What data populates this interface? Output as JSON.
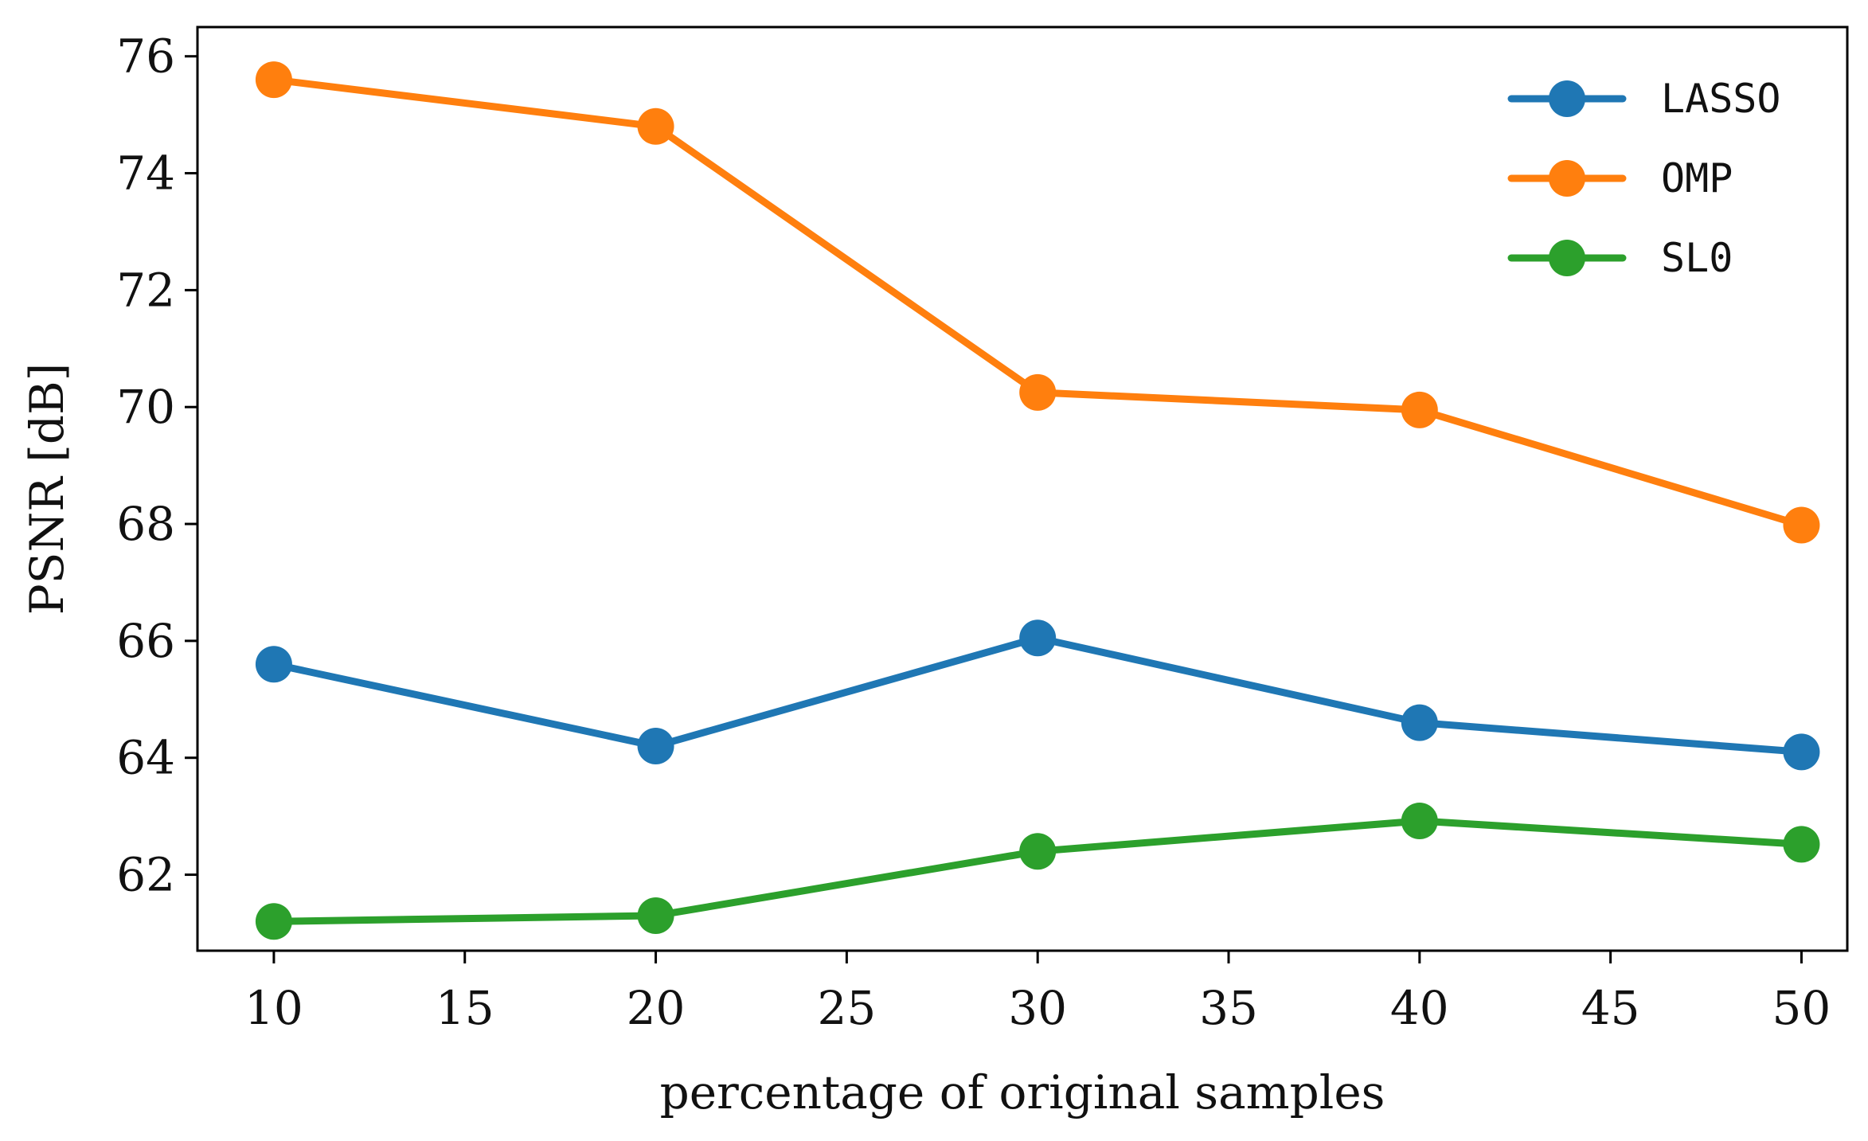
{
  "chart_data": {
    "type": "line",
    "xlabel": "percentage of original samples",
    "ylabel": "PSNR [dB]",
    "x": [
      10,
      20,
      30,
      40,
      50
    ],
    "xlim": [
      8,
      51.2
    ],
    "ylim": [
      60.7,
      76.5
    ],
    "xticks": [
      10,
      15,
      20,
      25,
      30,
      35,
      40,
      45,
      50
    ],
    "yticks": [
      62,
      64,
      66,
      68,
      70,
      72,
      74,
      76
    ],
    "grid": false,
    "legend_position": "top-right",
    "series": [
      {
        "name": "LASSO",
        "color": "#1f77b4",
        "values": [
          65.6,
          64.2,
          66.05,
          64.6,
          64.1
        ]
      },
      {
        "name": "OMP",
        "color": "#ff7f0e",
        "values": [
          75.6,
          74.8,
          70.25,
          69.95,
          67.98
        ]
      },
      {
        "name": "SL0",
        "color": "#2ca02c",
        "values": [
          61.2,
          61.3,
          62.4,
          62.92,
          62.52
        ]
      }
    ]
  }
}
